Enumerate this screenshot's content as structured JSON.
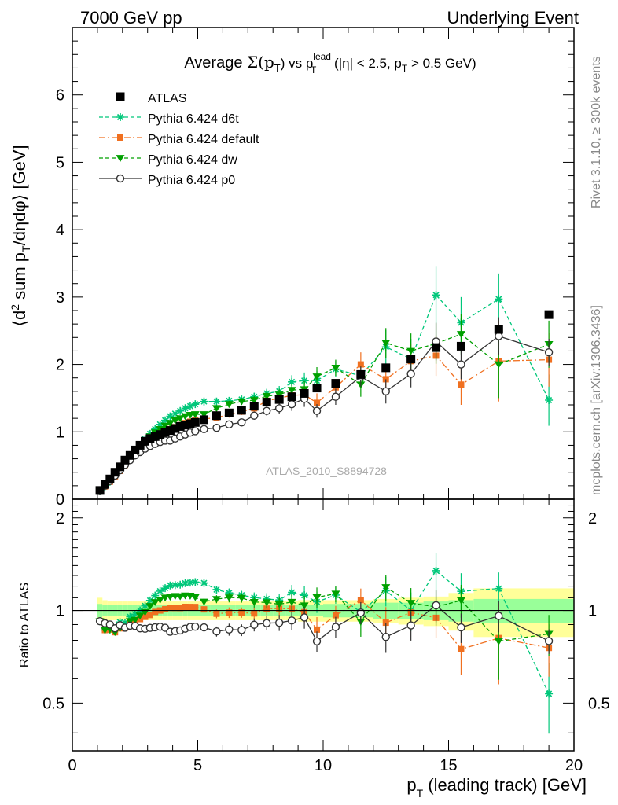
{
  "header": {
    "left": "7000 GeV pp",
    "right": "Underlying Event"
  },
  "title_parts": {
    "average": "Average ",
    "sigma": "Σ(p",
    "sub_t": "T",
    "vs": ") vs p",
    "sup_lead": "lead",
    "rest_a": " (|η| < 2.5, p",
    "rest_b": " > 0.5 GeV)"
  },
  "side_labels": {
    "rivet": "Rivet 3.1.10, ≥ 300k events",
    "mcplots": "mcplots.cern.ch [arXiv:1306.3436]"
  },
  "watermark": "ATLAS_2010_S8894728",
  "axes": {
    "main_ylabel_parts": [
      "⟨d",
      "2",
      " sum p",
      "T",
      "/dηdφ⟩ [GeV]"
    ],
    "ratio_ylabel": "Ratio to ATLAS",
    "xlabel_parts": [
      "p",
      "T",
      " (leading track) [GeV]"
    ],
    "x_ticks": [
      "0",
      "5",
      "10",
      "15",
      "20"
    ],
    "main_y_ticks": [
      "0",
      "1",
      "2",
      "3",
      "4",
      "5",
      "6"
    ],
    "ratio_y_ticks": [
      "0.5",
      "1",
      "2"
    ]
  },
  "colors": {
    "atlas": "#000000",
    "d6t": "#00c77a",
    "default": "#f07020",
    "dw": "#00a000",
    "p0": "#333333",
    "band_yellow": "#ffff99",
    "band_green": "#99ff99"
  },
  "chart_data": {
    "type": "scatter",
    "x_range": [
      0,
      20
    ],
    "main_y_range": [
      0,
      7
    ],
    "ratio_y_range": [
      0.35,
      2.3
    ],
    "ratio_log_scale": true,
    "legend_position": "top-left",
    "series": [
      {
        "name": "ATLAS",
        "marker": "square",
        "x": [
          1.1,
          1.3,
          1.5,
          1.7,
          1.9,
          2.1,
          2.3,
          2.5,
          2.7,
          2.9,
          3.1,
          3.3,
          3.5,
          3.7,
          3.9,
          4.1,
          4.3,
          4.5,
          4.7,
          4.9,
          5.25,
          5.75,
          6.25,
          6.75,
          7.25,
          7.75,
          8.25,
          8.75,
          9.25,
          9.75,
          10.5,
          11.5,
          12.5,
          13.5,
          14.5,
          15.5,
          17,
          19
        ],
        "y": [
          0.13,
          0.22,
          0.3,
          0.4,
          0.48,
          0.58,
          0.65,
          0.73,
          0.8,
          0.86,
          0.9,
          0.93,
          0.96,
          0.99,
          1.02,
          1.05,
          1.08,
          1.1,
          1.12,
          1.14,
          1.18,
          1.24,
          1.28,
          1.32,
          1.38,
          1.44,
          1.48,
          1.52,
          1.57,
          1.65,
          1.72,
          1.85,
          1.95,
          2.08,
          2.25,
          2.27,
          2.52,
          2.74
        ]
      },
      {
        "name": "Pythia 6.424 d6t",
        "marker": "star",
        "x": [
          1.1,
          1.3,
          1.5,
          1.7,
          1.9,
          2.1,
          2.3,
          2.5,
          2.7,
          2.9,
          3.1,
          3.3,
          3.5,
          3.7,
          3.9,
          4.1,
          4.3,
          4.5,
          4.7,
          4.9,
          5.25,
          5.75,
          6.25,
          6.75,
          7.25,
          7.75,
          8.25,
          8.75,
          9.25,
          9.75,
          10.5,
          11.5,
          12.5,
          13.5,
          14.5,
          15.5,
          17,
          19
        ],
        "y": [
          0.12,
          0.19,
          0.26,
          0.35,
          0.44,
          0.53,
          0.62,
          0.71,
          0.8,
          0.89,
          0.97,
          1.04,
          1.11,
          1.17,
          1.23,
          1.27,
          1.31,
          1.35,
          1.38,
          1.41,
          1.45,
          1.45,
          1.46,
          1.48,
          1.52,
          1.57,
          1.6,
          1.74,
          1.76,
          1.76,
          1.93,
          1.83,
          2.26,
          2.08,
          3.03,
          2.62,
          2.97,
          1.47
        ],
        "err": [
          0.01,
          0.01,
          0.01,
          0.01,
          0.01,
          0.01,
          0.01,
          0.01,
          0.01,
          0.01,
          0.01,
          0.02,
          0.02,
          0.02,
          0.02,
          0.02,
          0.02,
          0.02,
          0.02,
          0.02,
          0.03,
          0.04,
          0.05,
          0.05,
          0.06,
          0.07,
          0.08,
          0.1,
          0.12,
          0.14,
          0.12,
          0.18,
          0.25,
          0.3,
          0.42,
          0.38,
          0.38,
          0.38
        ]
      },
      {
        "name": "Pythia 6.424 default",
        "marker": "square",
        "x": [
          1.1,
          1.3,
          1.5,
          1.7,
          1.9,
          2.1,
          2.3,
          2.5,
          2.7,
          2.9,
          3.1,
          3.3,
          3.5,
          3.7,
          3.9,
          4.1,
          4.3,
          4.5,
          4.7,
          4.9,
          5.25,
          5.75,
          6.25,
          6.75,
          7.25,
          7.75,
          8.25,
          8.75,
          9.25,
          9.75,
          10.5,
          11.5,
          12.5,
          13.5,
          14.5,
          15.5,
          17,
          19
        ],
        "y": [
          0.12,
          0.19,
          0.26,
          0.34,
          0.42,
          0.51,
          0.59,
          0.67,
          0.75,
          0.82,
          0.87,
          0.92,
          0.96,
          1.0,
          1.04,
          1.07,
          1.1,
          1.13,
          1.15,
          1.17,
          1.19,
          1.21,
          1.26,
          1.3,
          1.35,
          1.46,
          1.5,
          1.54,
          1.55,
          1.43,
          1.66,
          2.0,
          1.78,
          2.05,
          2.13,
          1.7,
          2.05,
          2.07
        ],
        "err": [
          0.01,
          0.01,
          0.01,
          0.01,
          0.01,
          0.01,
          0.01,
          0.01,
          0.01,
          0.01,
          0.01,
          0.02,
          0.02,
          0.02,
          0.02,
          0.02,
          0.02,
          0.02,
          0.02,
          0.02,
          0.03,
          0.04,
          0.05,
          0.05,
          0.06,
          0.07,
          0.08,
          0.1,
          0.12,
          0.14,
          0.12,
          0.18,
          0.22,
          0.26,
          0.3,
          0.3,
          0.6,
          0.4
        ]
      },
      {
        "name": "Pythia 6.424 dw",
        "marker": "triangle-down",
        "x": [
          1.1,
          1.3,
          1.5,
          1.7,
          1.9,
          2.1,
          2.3,
          2.5,
          2.7,
          2.9,
          3.1,
          3.3,
          3.5,
          3.7,
          3.9,
          4.1,
          4.3,
          4.5,
          4.7,
          4.9,
          5.25,
          5.75,
          6.25,
          6.75,
          7.25,
          7.75,
          8.25,
          8.75,
          9.25,
          9.75,
          10.5,
          11.5,
          12.5,
          13.5,
          14.5,
          15.5,
          17,
          19
        ],
        "y": [
          0.12,
          0.19,
          0.26,
          0.34,
          0.42,
          0.51,
          0.6,
          0.68,
          0.77,
          0.85,
          0.93,
          0.99,
          1.04,
          1.09,
          1.13,
          1.17,
          1.2,
          1.23,
          1.25,
          1.26,
          1.26,
          1.35,
          1.41,
          1.45,
          1.47,
          1.53,
          1.55,
          1.62,
          1.63,
          1.82,
          1.95,
          1.7,
          2.32,
          2.2,
          2.31,
          2.45,
          2.0,
          2.3
        ],
        "err": [
          0.01,
          0.01,
          0.01,
          0.01,
          0.01,
          0.01,
          0.01,
          0.01,
          0.01,
          0.01,
          0.01,
          0.02,
          0.02,
          0.02,
          0.02,
          0.02,
          0.02,
          0.02,
          0.02,
          0.02,
          0.03,
          0.04,
          0.05,
          0.05,
          0.06,
          0.07,
          0.08,
          0.1,
          0.12,
          0.14,
          0.12,
          0.18,
          0.22,
          0.26,
          0.3,
          0.3,
          0.5,
          0.35
        ]
      },
      {
        "name": "Pythia 6.424 p0",
        "marker": "circle-open",
        "x": [
          1.1,
          1.3,
          1.5,
          1.7,
          1.9,
          2.1,
          2.3,
          2.5,
          2.7,
          2.9,
          3.1,
          3.3,
          3.5,
          3.7,
          3.9,
          4.1,
          4.3,
          4.5,
          4.7,
          4.9,
          5.25,
          5.75,
          6.25,
          6.75,
          7.25,
          7.75,
          8.25,
          8.75,
          9.25,
          9.75,
          10.5,
          11.5,
          12.5,
          13.5,
          14.5,
          15.5,
          17,
          19
        ],
        "y": [
          0.12,
          0.2,
          0.27,
          0.35,
          0.43,
          0.51,
          0.58,
          0.65,
          0.7,
          0.75,
          0.79,
          0.82,
          0.85,
          0.87,
          0.87,
          0.9,
          0.93,
          0.96,
          0.99,
          1.01,
          1.04,
          1.06,
          1.11,
          1.14,
          1.24,
          1.31,
          1.35,
          1.41,
          1.49,
          1.31,
          1.52,
          1.82,
          1.6,
          1.86,
          2.34,
          2.0,
          2.42,
          2.18
        ],
        "err": [
          0.01,
          0.01,
          0.01,
          0.01,
          0.01,
          0.01,
          0.01,
          0.01,
          0.01,
          0.01,
          0.01,
          0.02,
          0.02,
          0.02,
          0.02,
          0.02,
          0.02,
          0.02,
          0.02,
          0.02,
          0.03,
          0.04,
          0.05,
          0.05,
          0.06,
          0.07,
          0.08,
          0.1,
          0.12,
          0.1,
          0.12,
          0.15,
          0.18,
          0.2,
          0.28,
          0.22,
          0.28,
          0.2
        ]
      }
    ],
    "ratio_band": {
      "x_edges": [
        1.0,
        1.2,
        1.4,
        1.6,
        1.8,
        2.0,
        2.2,
        2.4,
        2.6,
        2.8,
        3.0,
        3.2,
        3.4,
        3.6,
        3.8,
        4.0,
        4.2,
        4.4,
        4.6,
        4.8,
        5.0,
        5.5,
        6.0,
        6.5,
        7.0,
        7.5,
        8.0,
        8.5,
        9.0,
        9.5,
        10.0,
        11.0,
        12.0,
        13.0,
        14.0,
        15.0,
        16.0,
        18.0,
        20.0
      ],
      "green_halfwidth": [
        0.05,
        0.04,
        0.04,
        0.04,
        0.04,
        0.04,
        0.04,
        0.04,
        0.04,
        0.04,
        0.04,
        0.04,
        0.04,
        0.04,
        0.04,
        0.04,
        0.04,
        0.04,
        0.04,
        0.04,
        0.04,
        0.04,
        0.04,
        0.04,
        0.04,
        0.04,
        0.04,
        0.04,
        0.04,
        0.04,
        0.05,
        0.05,
        0.06,
        0.06,
        0.07,
        0.08,
        0.09,
        0.09
      ],
      "yellow_halfwidth": [
        0.1,
        0.08,
        0.07,
        0.07,
        0.07,
        0.07,
        0.07,
        0.07,
        0.07,
        0.07,
        0.07,
        0.07,
        0.07,
        0.07,
        0.07,
        0.07,
        0.07,
        0.07,
        0.07,
        0.07,
        0.07,
        0.07,
        0.07,
        0.07,
        0.07,
        0.07,
        0.07,
        0.07,
        0.08,
        0.08,
        0.08,
        0.08,
        0.09,
        0.1,
        0.11,
        0.14,
        0.18,
        0.18
      ]
    }
  }
}
